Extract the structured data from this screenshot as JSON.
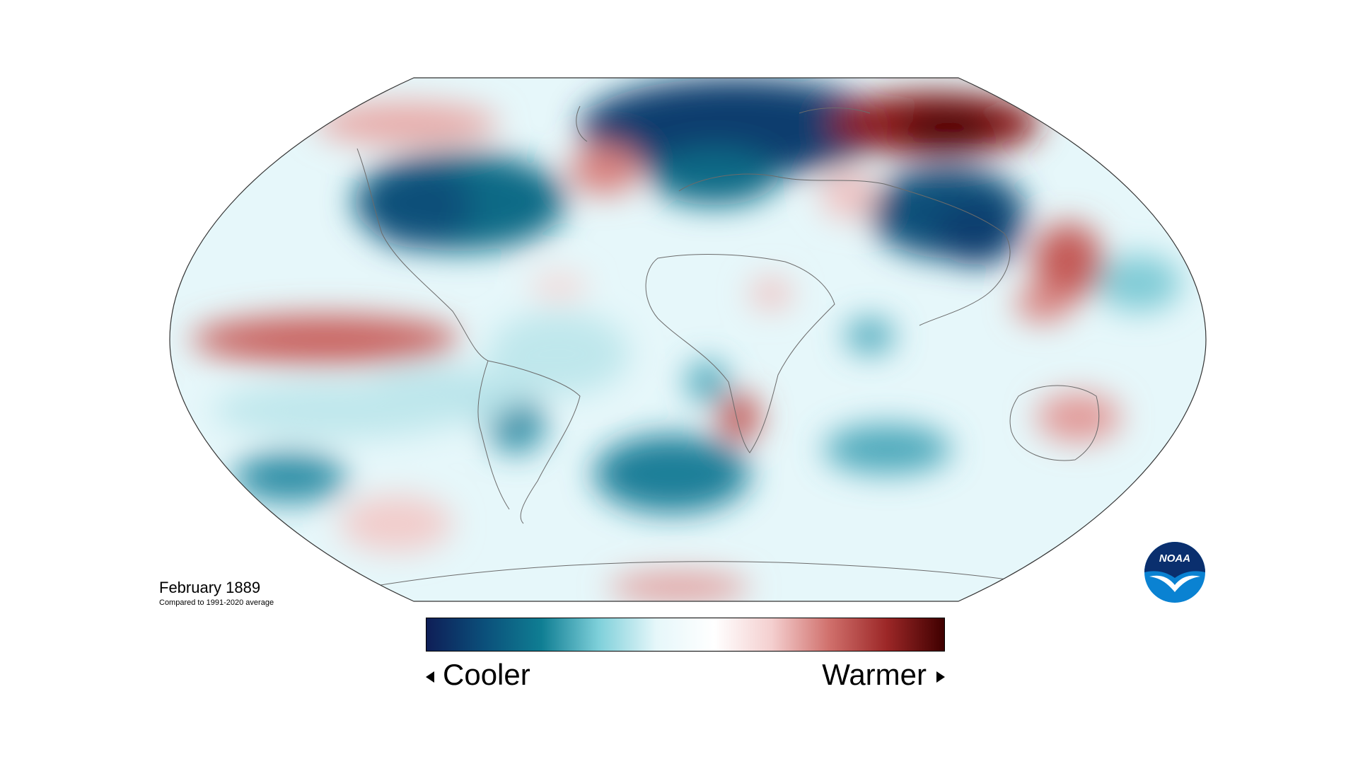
{
  "caption": {
    "date": "February 1889",
    "subtitle": "Compared to 1991-2020 average"
  },
  "legend": {
    "cool_label": "Cooler",
    "warm_label": "Warmer",
    "colors": [
      "#0e1e57",
      "#0b4f7a",
      "#0f7e93",
      "#7fd0da",
      "#e6f7fa",
      "#ffffff",
      "#f4cfcf",
      "#d0706c",
      "#9c2727",
      "#3f0000"
    ]
  },
  "logo": {
    "text": "NOAA",
    "colors": {
      "top": "#0a2f6e",
      "bottom": "#0a82d2",
      "bird": "#ffffff"
    }
  },
  "map": {
    "projection": "Robinson",
    "ocean_background": "#dff3f6",
    "outline_color": "#333333",
    "coast_color": "#666666"
  }
}
